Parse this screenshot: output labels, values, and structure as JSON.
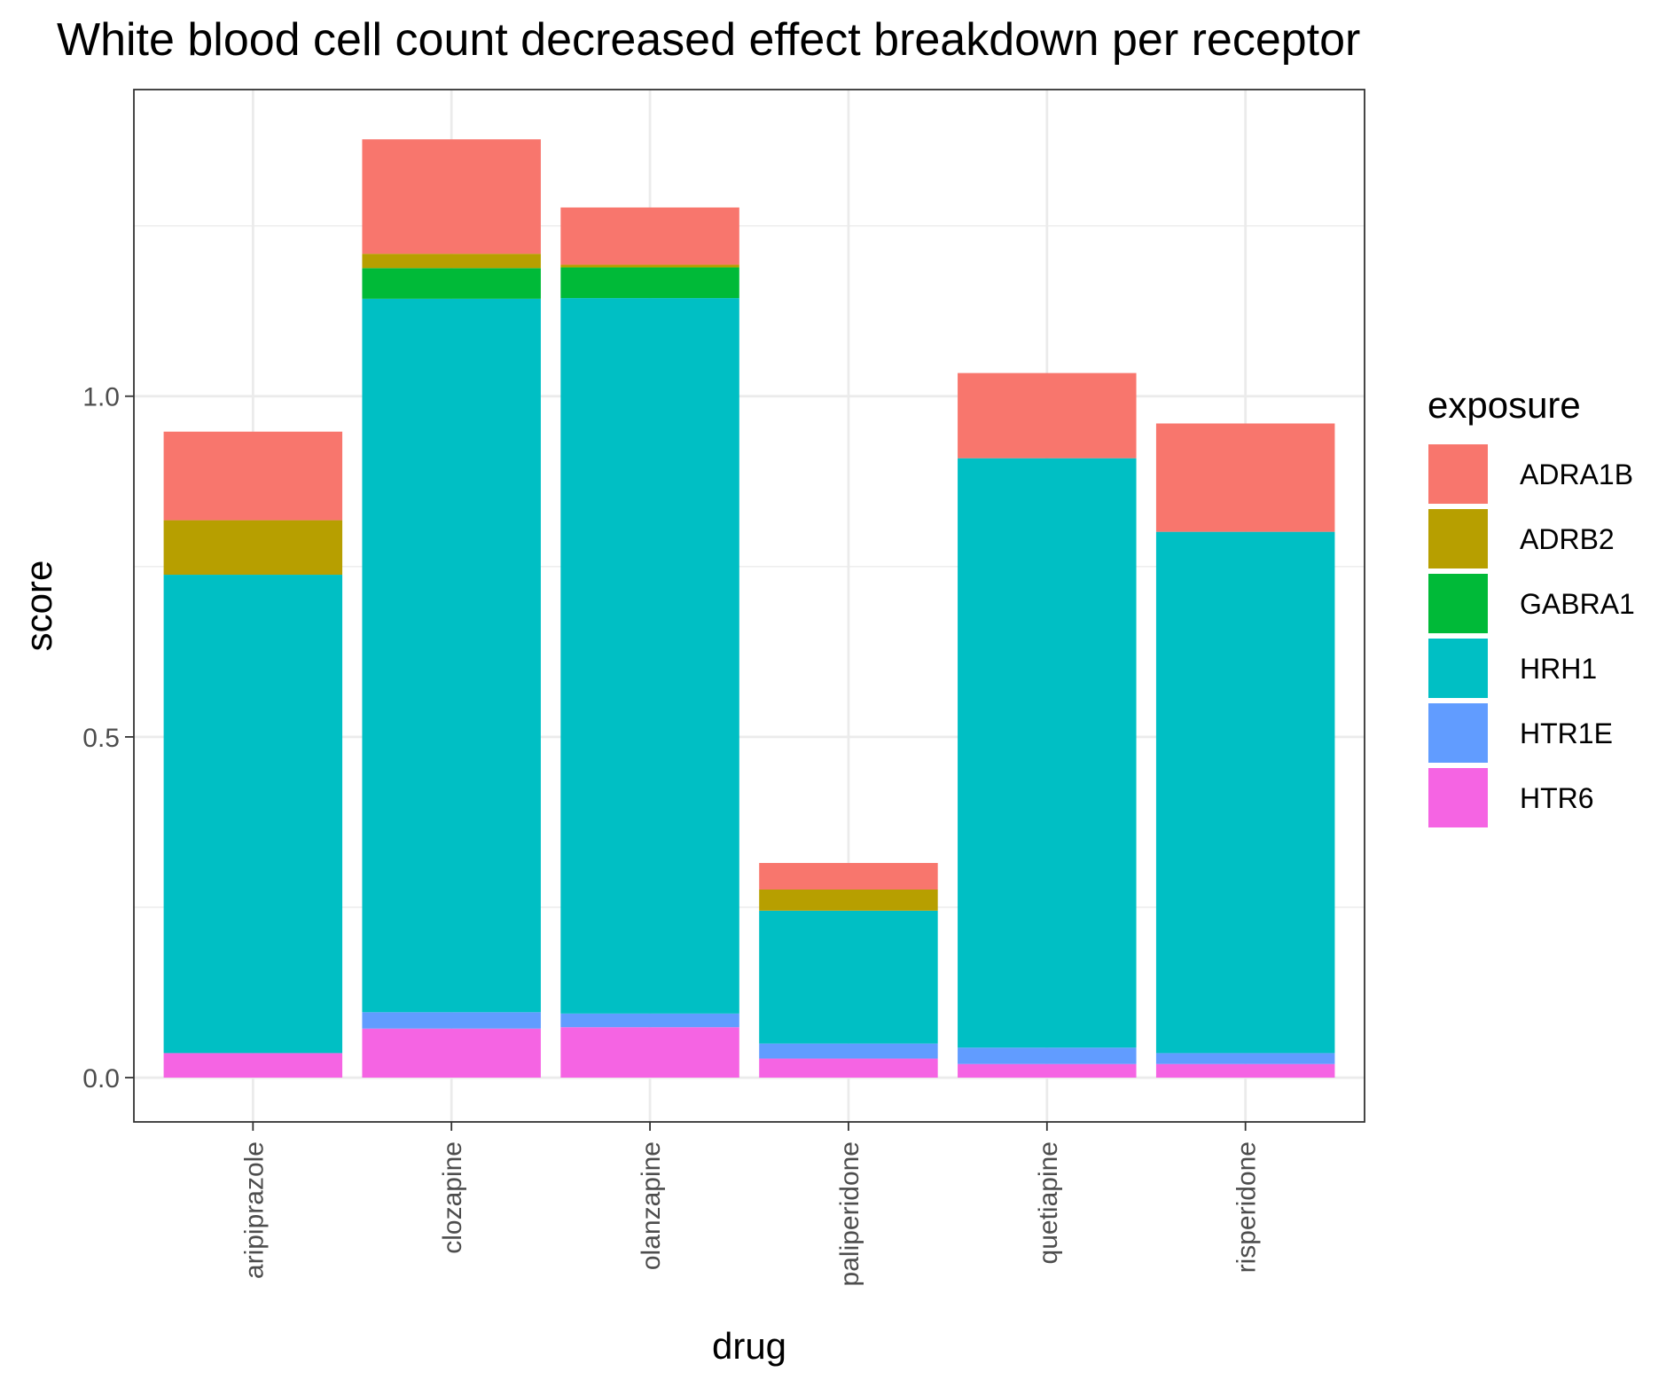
{
  "chart_data": {
    "type": "bar",
    "stacked": true,
    "title": "White blood cell count decreased effect breakdown per receptor",
    "xlabel": "drug",
    "ylabel": "score",
    "ylim": [
      -0.065,
      1.45
    ],
    "yticks": [
      0.0,
      0.5,
      1.0
    ],
    "ytick_labels": [
      "0.0",
      "0.5",
      "1.0"
    ],
    "y_minor_gridlines": [
      0.25,
      0.75,
      1.25
    ],
    "grid": true,
    "legend_title": "exposure",
    "legend_position": "right",
    "categories": [
      "aripiprazole",
      "clozapine",
      "olanzapine",
      "paliperidone",
      "quetiapine",
      "risperidone"
    ],
    "series": [
      {
        "name": "HTR6",
        "color": "#F564E3",
        "values": [
          0.036,
          0.072,
          0.074,
          0.028,
          0.02,
          0.02
        ]
      },
      {
        "name": "HTR1E",
        "color": "#619CFF",
        "values": [
          0.0,
          0.024,
          0.02,
          0.022,
          0.024,
          0.016
        ]
      },
      {
        "name": "HRH1",
        "color": "#00BFC4",
        "values": [
          0.702,
          1.047,
          1.05,
          0.195,
          0.865,
          0.765
        ]
      },
      {
        "name": "GABRA1",
        "color": "#00BA38",
        "values": [
          0.0,
          0.045,
          0.045,
          0.0,
          0.0,
          0.0
        ]
      },
      {
        "name": "ADRB2",
        "color": "#B79F00",
        "values": [
          0.08,
          0.021,
          0.004,
          0.031,
          0.0,
          0.0
        ]
      },
      {
        "name": "ADRA1B",
        "color": "#F8766D",
        "values": [
          0.13,
          0.168,
          0.084,
          0.039,
          0.125,
          0.159
        ]
      }
    ],
    "legend_order": [
      "ADRA1B",
      "ADRB2",
      "GABRA1",
      "HRH1",
      "HTR1E",
      "HTR6"
    ]
  }
}
